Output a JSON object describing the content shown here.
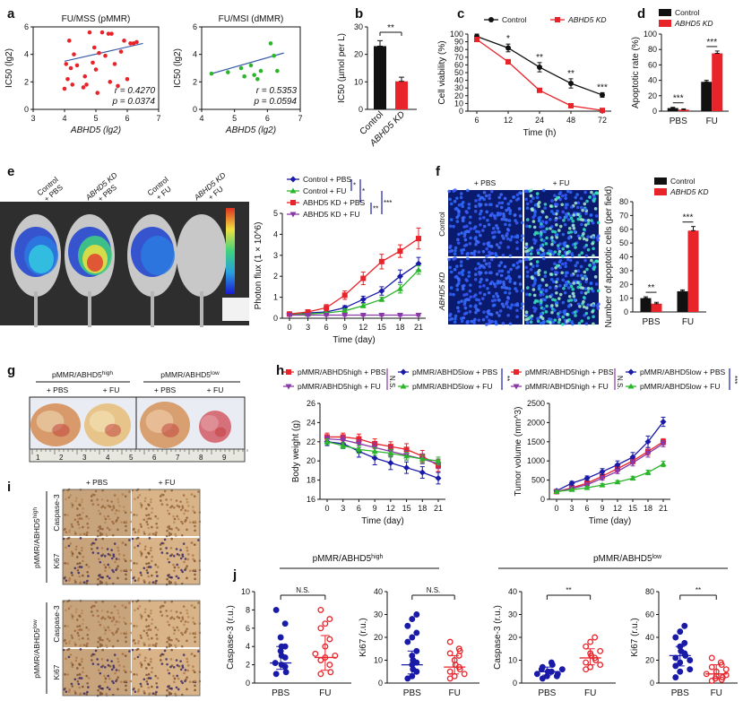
{
  "colors": {
    "red": "#e8232a",
    "blue": "#1a1aa8",
    "green": "#2bb52b",
    "purple": "#8a38a8",
    "black": "#111111",
    "line": "#3a5ba8"
  },
  "panel_letters": [
    "a",
    "b",
    "c",
    "d",
    "e",
    "f",
    "g",
    "h",
    "i",
    "j"
  ],
  "image_panels": {
    "e": {
      "labels": [
        "Control\n+ PBS",
        "ABHD5 KD\n+ PBS",
        "Control\n+ FU",
        "ABHD5 KD\n+ FU"
      ]
    },
    "f": {
      "cols": [
        "+ PBS",
        "+ FU"
      ],
      "rows": [
        "Control",
        "ABHD5 KD"
      ]
    },
    "g": {
      "groups": [
        "pMMR/ABHD5high",
        "pMMR/ABHD5low"
      ],
      "subgroups": [
        "+ PBS",
        "+ FU",
        "+ PBS",
        "+ FU"
      ]
    },
    "i": {
      "cols": [
        "+ PBS",
        "+ FU"
      ],
      "groups": [
        "pMMR/ABHD5high",
        "pMMR/ABHD5low"
      ],
      "stains": [
        "Caspase-3",
        "Ki67",
        "Caspase-3",
        "Ki67"
      ]
    }
  },
  "chart_data": [
    {
      "id": "a1",
      "type": "scatter",
      "title": "FU/MSS (pMMR)",
      "xlabel": "ABHD5 (lg2)",
      "ylabel": "IC50 (lg2)",
      "xlim": [
        3,
        7
      ],
      "ylim": [
        0,
        6
      ],
      "x": [
        4.0,
        4.05,
        4.1,
        4.15,
        4.2,
        4.25,
        4.3,
        4.4,
        4.6,
        4.65,
        4.7,
        4.8,
        4.9,
        4.95,
        5.0,
        5.05,
        5.1,
        5.2,
        5.3,
        5.4,
        5.45,
        5.5,
        5.6,
        5.7,
        5.8,
        5.9,
        6.0,
        6.1,
        6.2,
        6.3
      ],
      "y": [
        1.5,
        3.3,
        2.2,
        5.0,
        3.0,
        1.8,
        4.0,
        3.2,
        1.6,
        2.4,
        1.8,
        5.6,
        3.4,
        4.5,
        2.9,
        1.2,
        4.1,
        5.6,
        3.9,
        5.5,
        2.0,
        5.5,
        3.3,
        1.7,
        4.2,
        5.0,
        2.2,
        4.8,
        4.8,
        4.9
      ],
      "fit": [
        [
          4.0,
          3.5
        ],
        [
          6.5,
          4.8
        ]
      ],
      "stats": [
        "r = 0.4270",
        "p = 0.0374"
      ],
      "stat_colors": [
        "black",
        "red"
      ],
      "point_color": "red"
    },
    {
      "id": "a2",
      "type": "scatter",
      "title": "FU/MSI (dMMR)",
      "xlabel": "ABHD5 (lg2)",
      "ylabel": "IC50 (lg2)",
      "xlim": [
        4,
        7
      ],
      "ylim": [
        0,
        6
      ],
      "x": [
        4.3,
        4.8,
        5.2,
        5.3,
        5.5,
        5.6,
        5.7,
        5.8,
        6.1,
        6.2,
        6.3
      ],
      "y": [
        2.6,
        2.7,
        3.0,
        2.4,
        3.2,
        2.5,
        2.2,
        2.8,
        4.8,
        3.9,
        2.8
      ],
      "fit": [
        [
          4.3,
          2.6
        ],
        [
          6.5,
          4.1
        ]
      ],
      "stats": [
        "r = 0.5353",
        "p = 0.0594"
      ],
      "stat_colors": [
        "black",
        "black"
      ],
      "point_color": "green"
    },
    {
      "id": "b",
      "type": "bar",
      "ylabel": "IC50 (µmol per L)",
      "categories": [
        "Control",
        "ABHD5 KD"
      ],
      "values": [
        23,
        10.2
      ],
      "errors": [
        2,
        1.5
      ],
      "ylim": [
        0,
        30
      ],
      "yticks": [
        0,
        10,
        20,
        30
      ],
      "colors": [
        "black",
        "red"
      ],
      "sig": "**"
    },
    {
      "id": "c",
      "type": "line",
      "xlabel": "Time (h)",
      "ylabel": "Cell viability (%)",
      "categories": [
        "6",
        "12",
        "24",
        "48",
        "72"
      ],
      "ylim": [
        0,
        100
      ],
      "yticks": [
        0,
        10,
        20,
        30,
        40,
        50,
        60,
        70,
        80,
        90,
        100
      ],
      "series": [
        {
          "name": "Control",
          "values": [
            97,
            82,
            57,
            36,
            21
          ],
          "errors": [
            3,
            5,
            6,
            6,
            3
          ],
          "color": "black"
        },
        {
          "name": "ABHD5 KD",
          "values": [
            93,
            64,
            27,
            7,
            1
          ],
          "errors": [
            2,
            3,
            2,
            1,
            1
          ],
          "color": "red"
        }
      ],
      "sig": [
        "",
        "*",
        "**",
        "**",
        "***"
      ]
    },
    {
      "id": "d",
      "type": "bar",
      "ylabel": "Apoptotic rate (%)",
      "categories": [
        "PBS",
        "FU"
      ],
      "ylim": [
        0,
        100
      ],
      "yticks": [
        0,
        20,
        40,
        60,
        80,
        100
      ],
      "series": [
        {
          "name": "Control",
          "values": [
            4,
            38
          ],
          "errors": [
            1,
            2
          ],
          "color": "black"
        },
        {
          "name": "ABHD5 KD",
          "values": [
            2,
            75
          ],
          "errors": [
            1,
            3
          ],
          "color": "red"
        }
      ],
      "sig": [
        "***",
        "***"
      ]
    },
    {
      "id": "e",
      "type": "line",
      "xlabel": "Time (day)",
      "ylabel": "Photon flux (1 × 10^6)",
      "categories": [
        "0",
        "3",
        "6",
        "9",
        "12",
        "15",
        "18",
        "21"
      ],
      "ylim": [
        0,
        5
      ],
      "yticks": [
        0,
        1,
        2,
        3,
        4,
        5
      ],
      "series": [
        {
          "name": "Control + PBS",
          "values": [
            0.2,
            0.25,
            0.3,
            0.5,
            0.9,
            1.3,
            2.0,
            2.6
          ],
          "errors": [
            0.05,
            0.05,
            0.1,
            0.1,
            0.15,
            0.2,
            0.3,
            0.3
          ],
          "color": "blue"
        },
        {
          "name": "Control + FU",
          "values": [
            0.2,
            0.2,
            0.25,
            0.35,
            0.6,
            0.9,
            1.4,
            2.3
          ],
          "errors": [
            0.05,
            0.05,
            0.05,
            0.1,
            0.1,
            0.1,
            0.2,
            0.2
          ],
          "color": "green"
        },
        {
          "name": "ABHD5 KD + PBS",
          "values": [
            0.2,
            0.3,
            0.5,
            1.1,
            1.9,
            2.7,
            3.2,
            3.8
          ],
          "errors": [
            0.05,
            0.1,
            0.15,
            0.2,
            0.3,
            0.35,
            0.3,
            0.5
          ],
          "color": "red"
        },
        {
          "name": "ABHD5 KD + FU",
          "values": [
            0.15,
            0.15,
            0.15,
            0.15,
            0.15,
            0.15,
            0.15,
            0.15
          ],
          "errors": [
            0.05,
            0.05,
            0.05,
            0.05,
            0.05,
            0.05,
            0.05,
            0.05
          ],
          "color": "purple"
        }
      ],
      "legend_sig": [
        "*",
        "*",
        "**",
        "***"
      ]
    },
    {
      "id": "f",
      "type": "bar",
      "ylabel": "Number of apoptotic cells (per field)",
      "categories": [
        "PBS",
        "FU"
      ],
      "ylim": [
        0,
        80
      ],
      "yticks": [
        0,
        10,
        20,
        30,
        40,
        50,
        60,
        70,
        80
      ],
      "series": [
        {
          "name": "Control",
          "values": [
            10,
            15
          ],
          "errors": [
            1,
            1
          ],
          "color": "black"
        },
        {
          "name": "ABHD5 KD",
          "values": [
            6,
            59
          ],
          "errors": [
            1,
            3
          ],
          "color": "red"
        }
      ],
      "sig": [
        "**",
        "***"
      ]
    },
    {
      "id": "h1",
      "type": "line",
      "xlabel": "Time (day)",
      "ylabel": "Body weight (g)",
      "categories": [
        "0",
        "3",
        "6",
        "9",
        "12",
        "15",
        "18",
        "21"
      ],
      "ylim": [
        16,
        26
      ],
      "yticks": [
        16,
        18,
        20,
        22,
        24,
        26
      ],
      "series": [
        {
          "name": "pMMR/ABHD5high + PBS",
          "values": [
            22.5,
            22.5,
            22.3,
            21.8,
            21.5,
            21.2,
            20.5,
            19.5
          ],
          "errors": [
            0.4,
            0.4,
            0.5,
            0.5,
            0.5,
            0.6,
            0.6,
            0.6
          ],
          "color": "red"
        },
        {
          "name": "pMMR/ABHD5low + PBS",
          "values": [
            22.0,
            21.8,
            21.0,
            20.3,
            19.8,
            19.3,
            18.8,
            18.2
          ],
          "errors": [
            0.4,
            0.5,
            0.6,
            0.7,
            0.7,
            0.6,
            0.6,
            0.6
          ],
          "color": "blue"
        },
        {
          "name": "pMMR/ABHD5high + FU",
          "values": [
            22.3,
            22.2,
            21.8,
            21.4,
            21.0,
            20.6,
            20.2,
            19.7
          ],
          "errors": [
            0.3,
            0.4,
            0.4,
            0.5,
            0.5,
            0.5,
            0.5,
            0.5
          ],
          "color": "purple"
        },
        {
          "name": "pMMR/ABHD5low + FU",
          "values": [
            22.0,
            21.6,
            21.2,
            21.0,
            20.8,
            20.5,
            20.2,
            20.0
          ],
          "errors": [
            0.3,
            0.3,
            0.4,
            0.4,
            0.4,
            0.4,
            0.4,
            0.4
          ],
          "color": "green"
        }
      ],
      "legend_sig": [
        "N.S.",
        "**"
      ]
    },
    {
      "id": "h2",
      "type": "line",
      "xlabel": "Time (day)",
      "ylabel": "Tumor volume (mm^3)",
      "categories": [
        "0",
        "3",
        "6",
        "9",
        "12",
        "15",
        "18",
        "21"
      ],
      "ylim": [
        0,
        2500
      ],
      "yticks": [
        0,
        500,
        1000,
        1500,
        2000,
        2500
      ],
      "series": [
        {
          "name": "pMMR/ABHD5high + PBS",
          "values": [
            200,
            300,
            420,
            600,
            800,
            1000,
            1250,
            1500
          ],
          "errors": [
            20,
            30,
            40,
            50,
            70,
            80,
            100,
            80
          ],
          "color": "red"
        },
        {
          "name": "pMMR/ABHD5low + PBS",
          "values": [
            220,
            420,
            550,
            720,
            900,
            1100,
            1500,
            2020
          ],
          "errors": [
            30,
            50,
            60,
            80,
            100,
            120,
            150,
            120
          ],
          "color": "blue"
        },
        {
          "name": "pMMR/ABHD5high + FU",
          "values": [
            200,
            280,
            380,
            550,
            730,
            950,
            1200,
            1450
          ],
          "errors": [
            20,
            30,
            40,
            50,
            60,
            80,
            100,
            80
          ],
          "color": "purple"
        },
        {
          "name": "pMMR/ABHD5low + FU",
          "values": [
            200,
            250,
            300,
            370,
            450,
            550,
            700,
            920
          ],
          "errors": [
            20,
            20,
            30,
            40,
            40,
            50,
            60,
            70
          ],
          "color": "green"
        }
      ],
      "legend_sig": [
        "N.S.",
        "***"
      ]
    },
    {
      "id": "j1",
      "type": "dotplot",
      "ylabel": "Caspase-3 (r.u.)",
      "categories": [
        "PBS",
        "FU"
      ],
      "ylim": [
        0,
        10
      ],
      "yticks": [
        0,
        2,
        4,
        6,
        8,
        10
      ],
      "groups": [
        {
          "values": [
            1.0,
            1.2,
            1.8,
            2.0,
            2.2,
            2.8,
            3.0,
            3.5,
            4.0,
            4.0,
            5.0,
            6.5,
            8.0
          ],
          "mean": 2.2,
          "err": [
            1.5,
            4.0
          ],
          "color": "blue"
        },
        {
          "values": [
            1.0,
            1.2,
            2.0,
            2.5,
            2.8,
            3.0,
            3.2,
            4.0,
            4.8,
            6.0,
            6.5,
            7.0,
            8.0
          ],
          "mean": 2.8,
          "err": [
            1.4,
            5.2
          ],
          "color": "red"
        }
      ],
      "sig": "N.S."
    },
    {
      "id": "j2",
      "type": "dotplot",
      "ylabel": "Ki67 (r.u.)",
      "categories": [
        "PBS",
        "FU"
      ],
      "ylim": [
        0,
        40
      ],
      "yticks": [
        0,
        10,
        20,
        30,
        40
      ],
      "groups": [
        {
          "values": [
            2,
            3,
            5,
            6,
            8,
            9,
            10,
            12,
            14,
            18,
            20,
            22,
            25,
            28,
            30
          ],
          "mean": 8,
          "err": [
            4,
            14
          ],
          "color": "blue"
        },
        {
          "values": [
            2,
            3,
            4,
            5,
            6,
            7,
            8,
            10,
            12,
            13,
            14,
            15,
            18
          ],
          "mean": 7,
          "err": [
            4,
            12
          ],
          "color": "red"
        }
      ],
      "sig": "N.S."
    },
    {
      "id": "j3",
      "type": "dotplot",
      "ylabel": "Caspase-3 (r.u.)",
      "categories": [
        "PBS",
        "FU"
      ],
      "ylim": [
        0,
        40
      ],
      "yticks": [
        0,
        10,
        20,
        30,
        40
      ],
      "groups": [
        {
          "values": [
            2,
            3,
            3,
            4,
            4,
            5,
            5,
            6,
            6,
            7,
            8,
            9
          ],
          "mean": 5,
          "err": [
            3.5,
            7
          ],
          "color": "blue"
        },
        {
          "values": [
            6,
            7,
            8,
            9,
            10,
            11,
            12,
            13,
            14,
            16,
            18,
            20
          ],
          "mean": 11,
          "err": [
            8,
            15
          ],
          "color": "red"
        }
      ],
      "sig": "**"
    },
    {
      "id": "j4",
      "type": "dotplot",
      "ylabel": "Ki67 (r.u.)",
      "categories": [
        "PBS",
        "FU"
      ],
      "ylim": [
        0,
        80
      ],
      "yticks": [
        0,
        20,
        40,
        60,
        80
      ],
      "groups": [
        {
          "values": [
            5,
            10,
            12,
            15,
            18,
            20,
            22,
            24,
            26,
            28,
            32,
            35,
            40,
            45,
            50
          ],
          "mean": 24,
          "err": [
            15,
            32
          ],
          "color": "blue"
        },
        {
          "values": [
            2,
            3,
            4,
            5,
            6,
            7,
            8,
            10,
            12,
            14,
            16,
            18,
            22
          ],
          "mean": 8,
          "err": [
            4,
            16
          ],
          "color": "red"
        }
      ],
      "sig": "**"
    }
  ],
  "j_group_labels": [
    "pMMR/ABHD5high",
    "pMMR/ABHD5low"
  ],
  "h_legend": {
    "left_sig": "N.S.",
    "right_sig": "**",
    "right2_sig": "***"
  },
  "g_scale_numbers": [
    "1",
    "2",
    "3",
    "4",
    "5",
    "6",
    "7",
    "8",
    "9"
  ]
}
